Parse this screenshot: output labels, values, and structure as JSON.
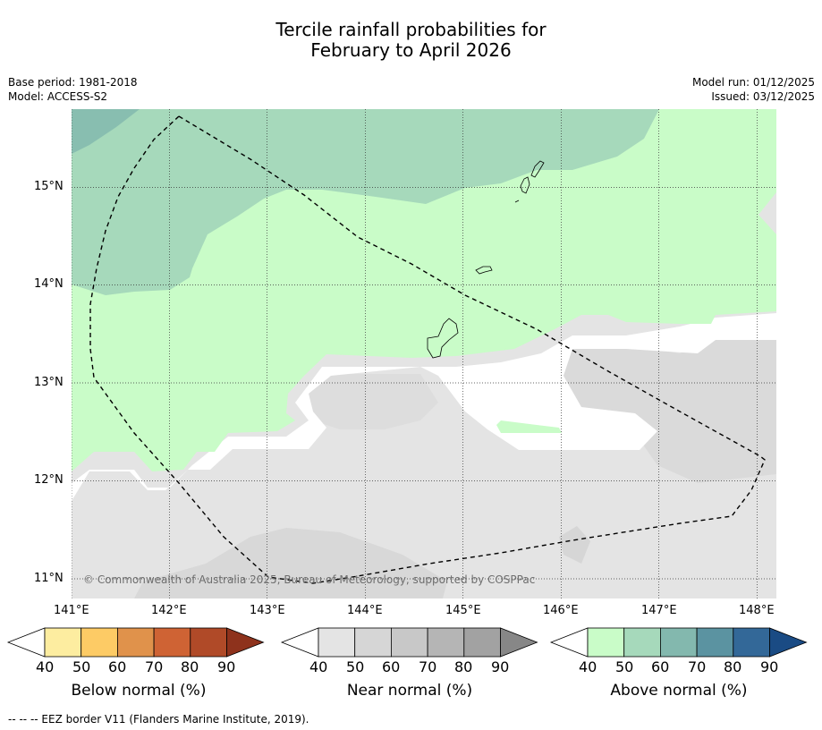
{
  "title": {
    "line1": "Tercile rainfall probabilities for",
    "line2": "February to April 2026"
  },
  "meta_left": {
    "base_period": "Base period: 1981-2018",
    "model": "Model: ACCESS-S2"
  },
  "meta_right": {
    "model_run": "Model run: 01/12/2025",
    "issued": "Issued: 03/12/2025"
  },
  "copyright": "© Commonwealth of Australia 2025, Bureau of Meteorology, supported by COSPPac",
  "map": {
    "lon_ticks": [
      "141°E",
      "142°E",
      "143°E",
      "144°E",
      "145°E",
      "146°E",
      "147°E",
      "148°E"
    ],
    "lat_ticks": [
      "15°N",
      "14°N",
      "13°N",
      "12°N",
      "11°N"
    ],
    "lon_range": [
      141.0,
      148.2
    ],
    "lat_range": [
      10.8,
      15.8
    ]
  },
  "colorbars": [
    {
      "name": "below",
      "label": "Below normal (%)",
      "ticks": [
        "40",
        "50",
        "60",
        "70",
        "80",
        "90"
      ],
      "colors": [
        "#ffffff",
        "#fdeda0",
        "#fdcb65",
        "#e0924b",
        "#cf6334",
        "#b04a28",
        "#8e321c"
      ]
    },
    {
      "name": "near",
      "label": "Near normal (%)",
      "ticks": [
        "40",
        "50",
        "60",
        "70",
        "80",
        "90"
      ],
      "colors": [
        "#ffffff",
        "#e4e4e4",
        "#d6d6d6",
        "#c8c8c8",
        "#b5b5b5",
        "#a2a2a2",
        "#878787"
      ]
    },
    {
      "name": "above",
      "label": "Above normal (%)",
      "ticks": [
        "40",
        "50",
        "60",
        "70",
        "80",
        "90"
      ],
      "colors": [
        "#ffffff",
        "#c9fcc8",
        "#a6d9bb",
        "#83b8ae",
        "#5b93a1",
        "#336898",
        "#1a4b84"
      ]
    }
  ],
  "footnote": "--  --  -- EEZ border V11 (Flanders Marine Institute, 2019)."
}
